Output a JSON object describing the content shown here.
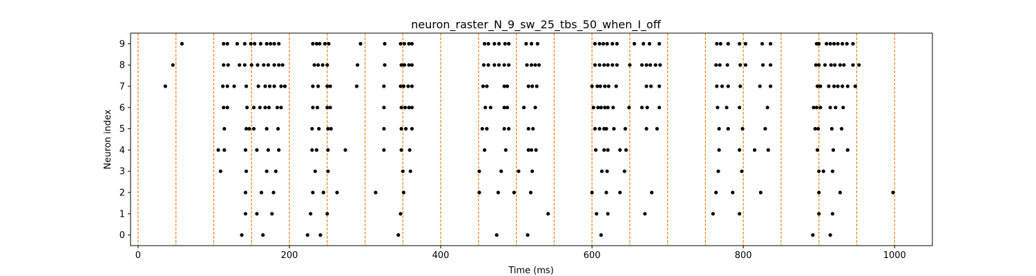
{
  "chart_data": {
    "type": "scatter",
    "title": "neuron_raster_N_9_sw_25_tbs_50_when_I_off",
    "xlabel": "Time (ms)",
    "ylabel": "Neuron index",
    "xlim": [
      -10,
      1050
    ],
    "ylim": [
      -0.5,
      9.5
    ],
    "xticks": [
      0,
      200,
      400,
      600,
      800,
      1000
    ],
    "yticks": [
      0,
      1,
      2,
      3,
      4,
      5,
      6,
      7,
      8,
      9
    ],
    "grid": false,
    "point_color": "#000000",
    "vline_color": "#ff7f0e",
    "vlines": [
      0,
      50,
      100,
      150,
      200,
      250,
      300,
      350,
      400,
      450,
      500,
      550,
      600,
      650,
      700,
      750,
      800,
      850,
      900,
      950,
      1000
    ],
    "neurons": [
      {
        "index": 0,
        "times": [
          137,
          165,
          224,
          241,
          344,
          474,
          515,
          612,
          892,
          915
        ]
      },
      {
        "index": 1,
        "times": [
          142,
          157,
          177,
          228,
          250,
          347,
          542,
          606,
          621,
          670,
          760,
          795,
          900,
          918
        ]
      },
      {
        "index": 2,
        "times": [
          142,
          163,
          179,
          231,
          245,
          263,
          314,
          351,
          451,
          476,
          497,
          519,
          600,
          619,
          637,
          679,
          764,
          786,
          823,
          900,
          928,
          998
        ]
      },
      {
        "index": 3,
        "times": [
          109,
          143,
          170,
          182,
          234,
          251,
          350,
          360,
          451,
          480,
          503,
          521,
          613,
          620,
          643,
          767,
          798,
          900,
          906,
          918
        ]
      },
      {
        "index": 4,
        "times": [
          106,
          114,
          142,
          157,
          172,
          186,
          230,
          236,
          251,
          274,
          325,
          348,
          359,
          458,
          486,
          516,
          520,
          526,
          605,
          616,
          621,
          637,
          645,
          768,
          795,
          815,
          833,
          898,
          919,
          938
        ]
      },
      {
        "index": 5,
        "times": [
          114,
          143,
          147,
          153,
          170,
          185,
          230,
          239,
          251,
          255,
          325,
          348,
          354,
          362,
          455,
          461,
          484,
          490,
          516,
          522,
          604,
          610,
          616,
          619,
          629,
          644,
          672,
          686,
          768,
          780,
          799,
          829,
          895,
          899,
          917,
          930
        ]
      },
      {
        "index": 6,
        "times": [
          113,
          118,
          144,
          153,
          161,
          168,
          173,
          184,
          189,
          231,
          237,
          250,
          254,
          325,
          348,
          353,
          358,
          362,
          459,
          466,
          484,
          488,
          510,
          525,
          602,
          608,
          612,
          617,
          621,
          628,
          649,
          666,
          673,
          689,
          766,
          778,
          795,
          832,
          893,
          897,
          902,
          915,
          922,
          932
        ]
      },
      {
        "index": 7,
        "times": [
          36,
          112,
          118,
          127,
          143,
          159,
          168,
          174,
          180,
          189,
          194,
          231,
          238,
          250,
          254,
          289,
          325,
          347,
          351,
          357,
          362,
          456,
          461,
          484,
          488,
          516,
          521,
          527,
          600,
          607,
          611,
          617,
          622,
          632,
          672,
          678,
          689,
          765,
          772,
          780,
          796,
          822,
          836,
          898,
          902,
          913,
          920,
          925,
          931,
          938,
          948
        ]
      },
      {
        "index": 8,
        "times": [
          46,
          113,
          119,
          134,
          141,
          150,
          158,
          166,
          172,
          180,
          186,
          191,
          233,
          238,
          244,
          250,
          290,
          326,
          348,
          352,
          358,
          362,
          457,
          463,
          471,
          477,
          484,
          490,
          514,
          520,
          525,
          530,
          604,
          610,
          616,
          621,
          627,
          633,
          650,
          666,
          672,
          677,
          684,
          690,
          764,
          769,
          779,
          796,
          803,
          826,
          836,
          896,
          900,
          908,
          916,
          921,
          928,
          933,
          945,
          953
        ]
      },
      {
        "index": 9,
        "times": [
          58,
          113,
          118,
          131,
          141,
          149,
          154,
          162,
          170,
          175,
          180,
          186,
          231,
          236,
          240,
          247,
          252,
          294,
          326,
          347,
          352,
          358,
          362,
          458,
          463,
          471,
          477,
          485,
          490,
          513,
          520,
          528,
          604,
          610,
          615,
          620,
          627,
          633,
          656,
          668,
          676,
          689,
          765,
          770,
          780,
          795,
          803,
          825,
          836,
          897,
          900,
          910,
          915,
          920,
          925,
          931,
          937,
          945
        ]
      }
    ]
  }
}
